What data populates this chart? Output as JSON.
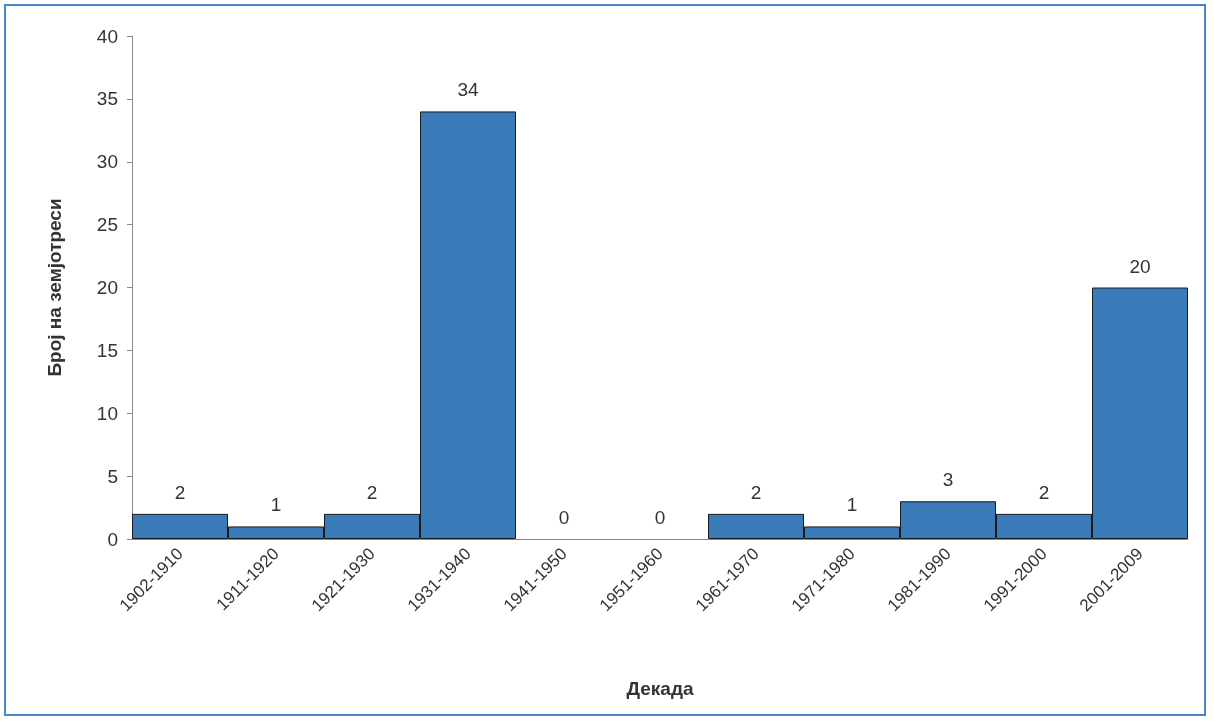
{
  "chart_data": {
    "type": "bar",
    "xlabel": "Декада",
    "ylabel": "Број на земјотреси",
    "categories": [
      "1902-1910",
      "1911-1920",
      "1921-1930",
      "1931-1940",
      "1941-1950",
      "1951-1960",
      "1961-1970",
      "1971-1980",
      "1981-1990",
      "1991-2000",
      "2001-2009"
    ],
    "values": [
      2,
      1,
      2,
      34,
      0,
      0,
      2,
      1,
      3,
      2,
      20
    ],
    "color": "#3a7ab8",
    "ylim": [
      0,
      40
    ],
    "yticks": [
      0,
      5,
      10,
      15,
      20,
      25,
      30,
      35,
      40
    ],
    "grid": false,
    "data_labels": true
  }
}
